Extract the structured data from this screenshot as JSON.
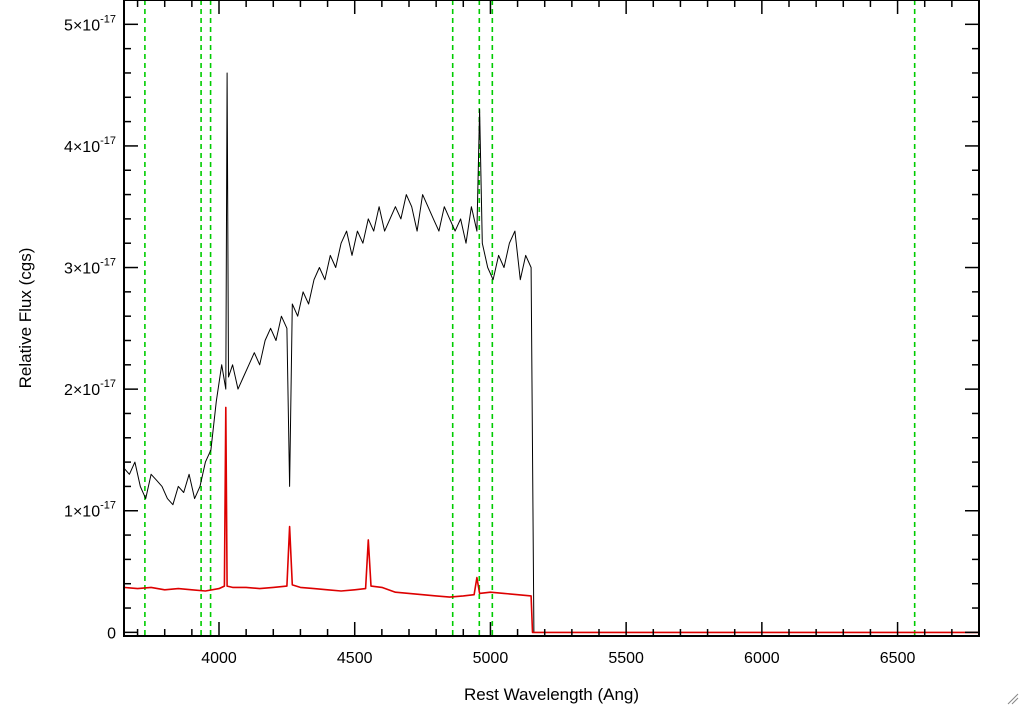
{
  "chart_data": {
    "type": "line",
    "title": "",
    "xlabel": "Rest Wavelength (Ang)",
    "ylabel": "Relative Flux (cgs)",
    "xlim": [
      3650,
      6800
    ],
    "ylim": [
      -3e-19,
      5.2e-17
    ],
    "x_ticks": [
      4000,
      4500,
      5000,
      5500,
      6000,
      6500
    ],
    "x_tick_labels": [
      "4000",
      "4500",
      "5000",
      "5500",
      "6000",
      "6500"
    ],
    "y_ticks": [
      0,
      1e-17,
      2e-17,
      3e-17,
      4e-17,
      5e-17
    ],
    "y_tick_labels": [
      {
        "mantissa": "0",
        "exponent": ""
      },
      {
        "mantissa": "1×10",
        "exponent": "-17"
      },
      {
        "mantissa": "2×10",
        "exponent": "-17"
      },
      {
        "mantissa": "3×10",
        "exponent": "-17"
      },
      {
        "mantissa": "4×10",
        "exponent": "-17"
      },
      {
        "mantissa": "5×10",
        "exponent": "-17"
      }
    ],
    "grid": false,
    "legend": "none",
    "vertical_lines": {
      "color": "#00cc00",
      "style": "dashed",
      "x": [
        3727,
        3934,
        3969,
        4861,
        4959,
        5007,
        6563
      ]
    },
    "series": [
      {
        "color": "#000000",
        "x": [
          3650,
          3670,
          3690,
          3710,
          3730,
          3750,
          3770,
          3790,
          3810,
          3830,
          3850,
          3870,
          3890,
          3910,
          3930,
          3950,
          3970,
          3990,
          4010,
          4025,
          4030,
          4035,
          4050,
          4070,
          4090,
          4110,
          4130,
          4150,
          4170,
          4190,
          4210,
          4230,
          4250,
          4260,
          4270,
          4290,
          4310,
          4330,
          4350,
          4370,
          4390,
          4410,
          4430,
          4450,
          4470,
          4490,
          4510,
          4530,
          4550,
          4570,
          4590,
          4610,
          4630,
          4650,
          4670,
          4690,
          4710,
          4730,
          4750,
          4770,
          4790,
          4810,
          4830,
          4850,
          4870,
          4890,
          4910,
          4930,
          4950,
          4960,
          4970,
          4990,
          5010,
          5030,
          5050,
          5070,
          5090,
          5110,
          5130,
          5150,
          5160
        ],
        "y": [
          1.35e-17,
          1.3e-17,
          1.4e-17,
          1.2e-17,
          1.1e-17,
          1.3e-17,
          1.25e-17,
          1.2e-17,
          1.1e-17,
          1.05e-17,
          1.2e-17,
          1.15e-17,
          1.3e-17,
          1.1e-17,
          1.2e-17,
          1.4e-17,
          1.5e-17,
          1.9e-17,
          2.2e-17,
          2e-17,
          4.6e-17,
          2.1e-17,
          2.2e-17,
          2e-17,
          2.1e-17,
          2.2e-17,
          2.3e-17,
          2.2e-17,
          2.4e-17,
          2.5e-17,
          2.4e-17,
          2.6e-17,
          2.5e-17,
          1.2e-17,
          2.7e-17,
          2.6e-17,
          2.8e-17,
          2.7e-17,
          2.9e-17,
          3e-17,
          2.9e-17,
          3.1e-17,
          3e-17,
          3.2e-17,
          3.3e-17,
          3.1e-17,
          3.3e-17,
          3.2e-17,
          3.4e-17,
          3.3e-17,
          3.5e-17,
          3.3e-17,
          3.4e-17,
          3.5e-17,
          3.4e-17,
          3.6e-17,
          3.5e-17,
          3.3e-17,
          3.6e-17,
          3.5e-17,
          3.4e-17,
          3.3e-17,
          3.5e-17,
          3.4e-17,
          3.3e-17,
          3.4e-17,
          3.2e-17,
          3.5e-17,
          3.3e-17,
          4.3e-17,
          3.2e-17,
          3e-17,
          2.9e-17,
          3.1e-17,
          3e-17,
          3.2e-17,
          3.3e-17,
          2.9e-17,
          3.1e-17,
          3e-17,
          0
        ]
      },
      {
        "color": "#dd0000",
        "x": [
          3650,
          3700,
          3750,
          3800,
          3850,
          3900,
          3950,
          4000,
          4020,
          4025,
          4030,
          4050,
          4100,
          4150,
          4200,
          4250,
          4260,
          4270,
          4300,
          4350,
          4400,
          4450,
          4500,
          4540,
          4550,
          4560,
          4600,
          4650,
          4700,
          4750,
          4800,
          4850,
          4900,
          4940,
          4950,
          4960,
          5000,
          5050,
          5100,
          5150,
          5155,
          5200,
          5500,
          6000,
          6500,
          6800
        ],
        "y": [
          3.7e-18,
          3.6e-18,
          3.7e-18,
          3.5e-18,
          3.6e-18,
          3.5e-18,
          3.4e-18,
          3.6e-18,
          3.8e-18,
          1.85e-17,
          3.8e-18,
          3.7e-18,
          3.7e-18,
          3.6e-18,
          3.7e-18,
          3.8e-18,
          8.7e-18,
          3.9e-18,
          3.7e-18,
          3.6e-18,
          3.5e-18,
          3.4e-18,
          3.5e-18,
          3.6e-18,
          7.6e-18,
          3.8e-18,
          3.7e-18,
          3.3e-18,
          3.2e-18,
          3.1e-18,
          3e-18,
          2.9e-18,
          3e-18,
          3.1e-18,
          4.5e-18,
          3.2e-18,
          3.3e-18,
          3.2e-18,
          3.1e-18,
          3e-18,
          0,
          0,
          0,
          0,
          0,
          0
        ]
      }
    ]
  }
}
